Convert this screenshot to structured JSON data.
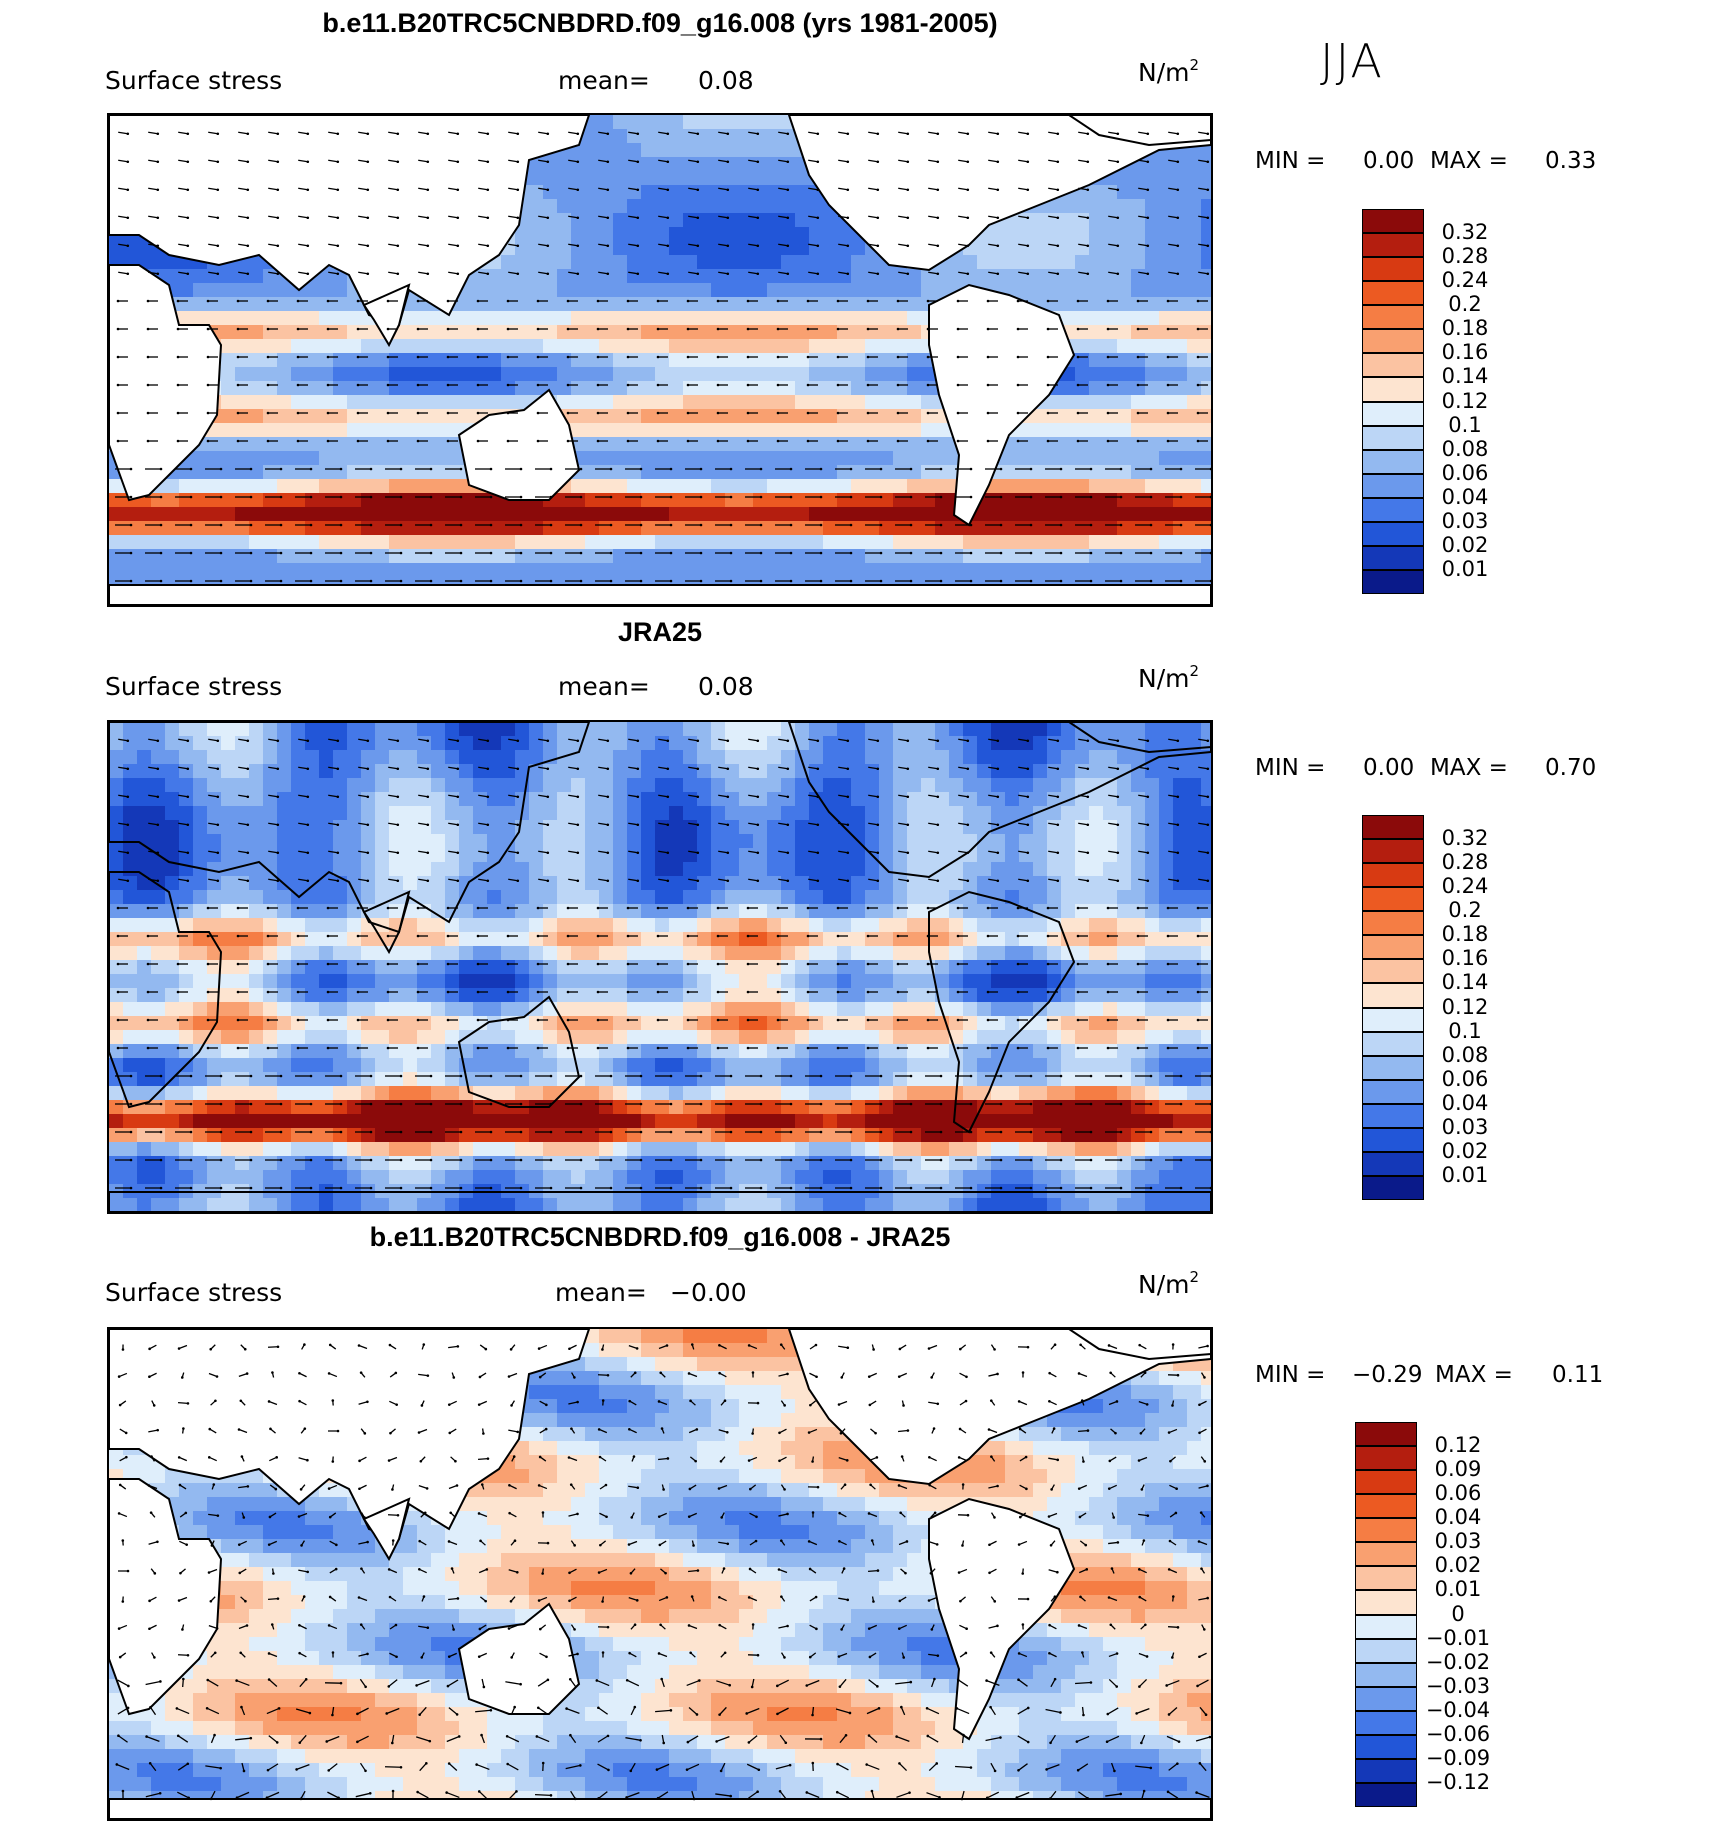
{
  "season_label": "JJA",
  "panels": [
    {
      "title": "b.e11.B20TRC5CNBDRD.f09_g16.008 (yrs 1981-2005)",
      "variable": "Surface stress",
      "mean_label": "mean=",
      "mean_value": "0.08",
      "units_base": "N/m",
      "units_exp": "2",
      "min_label": "MIN =",
      "min_value": "0.00",
      "max_label": "MAX =",
      "max_value": "0.33",
      "colorbar_labels": [
        "0.32",
        "0.28",
        "0.24",
        "0.2",
        "0.18",
        "0.16",
        "0.14",
        "0.12",
        "0.1",
        "0.08",
        "0.06",
        "0.04",
        "0.03",
        "0.02",
        "0.01"
      ],
      "colorbar_colors": [
        "#8b0a0a",
        "#b41e0f",
        "#d83a12",
        "#ec5a22",
        "#f57d44",
        "#f9a070",
        "#fbc3a2",
        "#fde4d0",
        "#dfeefb",
        "#bcd6f6",
        "#93b9f0",
        "#6b99ec",
        "#4478e8",
        "#2256d8",
        "#1438b8",
        "#0a1a8a"
      ]
    },
    {
      "title": "JRA25",
      "variable": "Surface stress",
      "mean_label": "mean=",
      "mean_value": "0.08",
      "units_base": "N/m",
      "units_exp": "2",
      "min_label": "MIN =",
      "min_value": "0.00",
      "max_label": "MAX =",
      "max_value": "0.70",
      "colorbar_labels": [
        "0.32",
        "0.28",
        "0.24",
        "0.2",
        "0.18",
        "0.16",
        "0.14",
        "0.12",
        "0.1",
        "0.08",
        "0.06",
        "0.04",
        "0.03",
        "0.02",
        "0.01"
      ],
      "colorbar_colors": [
        "#8b0a0a",
        "#b41e0f",
        "#d83a12",
        "#ec5a22",
        "#f57d44",
        "#f9a070",
        "#fbc3a2",
        "#fde4d0",
        "#dfeefb",
        "#bcd6f6",
        "#93b9f0",
        "#6b99ec",
        "#4478e8",
        "#2256d8",
        "#1438b8",
        "#0a1a8a"
      ]
    },
    {
      "title": "b.e11.B20TRC5CNBDRD.f09_g16.008 - JRA25",
      "variable": "Surface stress",
      "mean_label": "mean=",
      "mean_value": "−0.00",
      "units_base": "N/m",
      "units_exp": "2",
      "min_label": "MIN =",
      "min_value": "−0.29",
      "max_label": "MAX =",
      "max_value": "0.11",
      "colorbar_labels": [
        "0.12",
        "0.09",
        "0.06",
        "0.04",
        "0.03",
        "0.02",
        "0.01",
        "0",
        "−0.01",
        "−0.02",
        "−0.03",
        "−0.04",
        "−0.06",
        "−0.09",
        "−0.12"
      ],
      "colorbar_colors": [
        "#8b0a0a",
        "#b41e0f",
        "#d83a12",
        "#ec5a22",
        "#f57d44",
        "#f9a070",
        "#fbc3a2",
        "#fde4d0",
        "#dfeefb",
        "#bcd6f6",
        "#93b9f0",
        "#6b99ec",
        "#4478e8",
        "#2256d8",
        "#1438b8",
        "#0a1a8a"
      ]
    }
  ]
}
